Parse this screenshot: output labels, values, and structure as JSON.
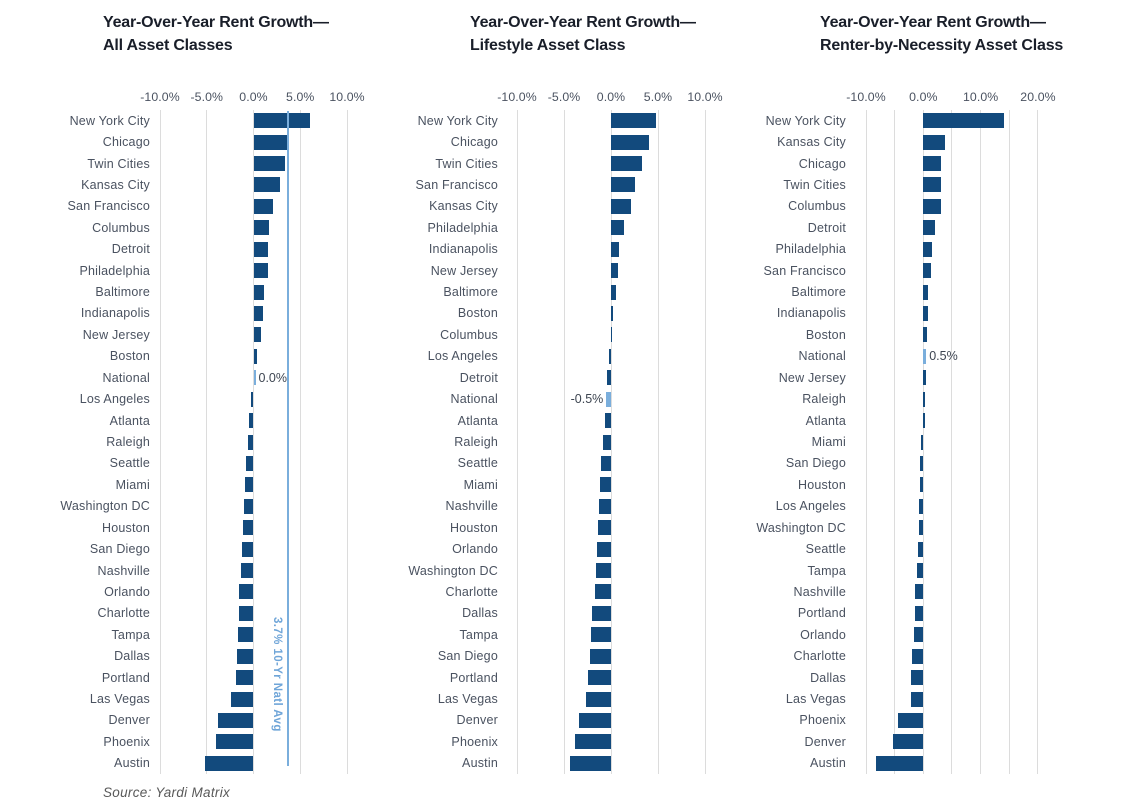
{
  "page": {
    "source_note": "Source: Yardi Matrix"
  },
  "colors": {
    "bar": "#124a7d",
    "national_bar": "#7aaedc",
    "avg_line": "#7aaedc",
    "gridline": "#dcdcdc",
    "title_text": "#191e29",
    "label_text": "#4a5260"
  },
  "chart_data": [
    {
      "type": "bar",
      "orientation": "horizontal",
      "title_line1": "Year-Over-Year Rent Growth—",
      "title_line2": "All Asset Classes",
      "unit": "%",
      "axis_range": [
        -10,
        10
      ],
      "grid": true,
      "ticks": [
        {
          "value": -10,
          "label": "-10.0%"
        },
        {
          "value": -5,
          "label": "-5.0%"
        },
        {
          "value": 0,
          "label": "0.0%"
        },
        {
          "value": 5,
          "label": "5.0%"
        },
        {
          "value": 10,
          "label": "10.0%"
        }
      ],
      "categories": [
        "New York City",
        "Chicago",
        "Twin Cities",
        "Kansas City",
        "San Francisco",
        "Columbus",
        "Detroit",
        "Philadelphia",
        "Baltimore",
        "Indianapolis",
        "New Jersey",
        "Boston",
        "National",
        "Los Angeles",
        "Atlanta",
        "Raleigh",
        "Seattle",
        "Miami",
        "Washington DC",
        "Houston",
        "San Diego",
        "Nashville",
        "Orlando",
        "Charlotte",
        "Tampa",
        "Dallas",
        "Portland",
        "Las Vegas",
        "Denver",
        "Phoenix",
        "Austin"
      ],
      "values": [
        6.0,
        3.6,
        3.4,
        2.8,
        2.1,
        1.7,
        1.6,
        1.5,
        1.1,
        1.0,
        0.8,
        0.4,
        0.0,
        -0.3,
        -0.5,
        -0.6,
        -0.8,
        -0.9,
        -1.0,
        -1.1,
        -1.2,
        -1.3,
        -1.5,
        -1.6,
        -1.7,
        -1.8,
        -1.9,
        -2.4,
        -3.8,
        -4.0,
        -5.2
      ],
      "national_label": "0.0%",
      "avg_line": {
        "value": 3.7,
        "label": "3.7% 10-Yr Natl Avg"
      }
    },
    {
      "type": "bar",
      "orientation": "horizontal",
      "title_line1": "Year-Over-Year Rent Growth—",
      "title_line2": "Lifestyle Asset Class",
      "unit": "%",
      "axis_range": [
        -10,
        10
      ],
      "grid": true,
      "ticks": [
        {
          "value": -10,
          "label": "-10.0%"
        },
        {
          "value": -5,
          "label": "-5.0%"
        },
        {
          "value": 0,
          "label": "0.0%"
        },
        {
          "value": 5,
          "label": "5.0%"
        },
        {
          "value": 10,
          "label": "10.0%"
        }
      ],
      "categories": [
        "New York City",
        "Chicago",
        "Twin Cities",
        "San Francisco",
        "Kansas City",
        "Philadelphia",
        "Indianapolis",
        "New Jersey",
        "Baltimore",
        "Boston",
        "Columbus",
        "Los Angeles",
        "Detroit",
        "National",
        "Atlanta",
        "Raleigh",
        "Seattle",
        "Miami",
        "Nashville",
        "Houston",
        "Orlando",
        "Washington DC",
        "Charlotte",
        "Dallas",
        "Tampa",
        "San Diego",
        "Portland",
        "Las Vegas",
        "Denver",
        "Phoenix",
        "Austin"
      ],
      "values": [
        4.8,
        4.0,
        3.3,
        2.6,
        2.1,
        1.4,
        0.9,
        0.7,
        0.5,
        0.2,
        0.1,
        -0.2,
        -0.4,
        -0.5,
        -0.6,
        -0.8,
        -1.1,
        -1.2,
        -1.3,
        -1.4,
        -1.5,
        -1.6,
        -1.7,
        -2.0,
        -2.1,
        -2.2,
        -2.4,
        -2.7,
        -3.4,
        -3.8,
        -4.4
      ],
      "national_label": "-0.5%",
      "avg_line": null
    },
    {
      "type": "bar",
      "orientation": "horizontal",
      "title_line1": "Year-Over-Year Rent Growth—",
      "title_line2": "Renter-by-Necessity Asset Class",
      "unit": "%",
      "axis_range": [
        -10,
        20
      ],
      "grid": true,
      "ticks": [
        {
          "value": -10,
          "label": "-10.0%"
        },
        {
          "value": -5,
          "label": ""
        },
        {
          "value": 0,
          "label": "0.0%"
        },
        {
          "value": 5,
          "label": ""
        },
        {
          "value": 10,
          "label": "10.0%"
        },
        {
          "value": 15,
          "label": ""
        },
        {
          "value": 20,
          "label": "20.0%"
        }
      ],
      "categories": [
        "New York City",
        "Kansas City",
        "Chicago",
        "Twin Cities",
        "Columbus",
        "Detroit",
        "Philadelphia",
        "San Francisco",
        "Baltimore",
        "Indianapolis",
        "Boston",
        "National",
        "New Jersey",
        "Raleigh",
        "Atlanta",
        "Miami",
        "San Diego",
        "Houston",
        "Los Angeles",
        "Washington DC",
        "Seattle",
        "Tampa",
        "Nashville",
        "Portland",
        "Orlando",
        "Charlotte",
        "Dallas",
        "Las Vegas",
        "Phoenix",
        "Denver",
        "Austin"
      ],
      "values": [
        14.0,
        3.8,
        3.1,
        3.1,
        3.0,
        2.0,
        1.5,
        1.4,
        0.9,
        0.9,
        0.6,
        0.5,
        0.5,
        0.3,
        0.0,
        -0.4,
        -0.6,
        -0.6,
        -0.7,
        -0.8,
        -0.9,
        -1.1,
        -1.4,
        -1.4,
        -1.6,
        -1.9,
        -2.1,
        -2.1,
        -4.4,
        -5.3,
        -8.2
      ],
      "national_label": "0.5%",
      "avg_line": null
    }
  ]
}
